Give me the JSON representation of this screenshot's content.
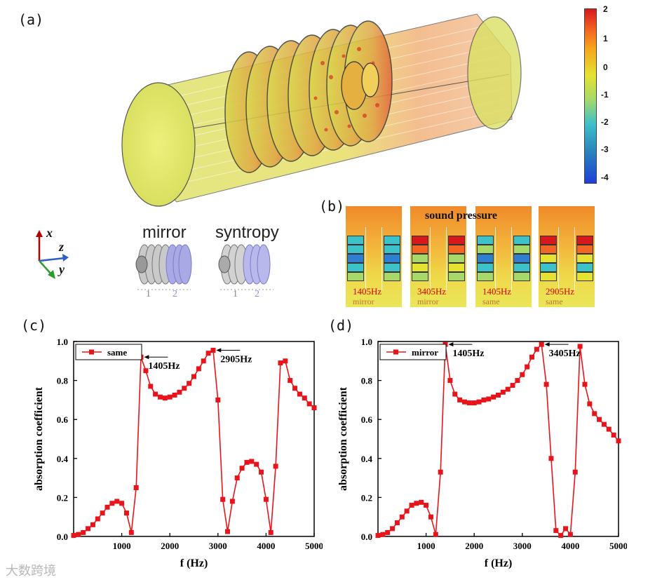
{
  "labels": {
    "a": "(a)",
    "b": "(b)",
    "c": "(c)",
    "d": "(d)"
  },
  "colorbar": {
    "ticks": [
      "2",
      "1",
      "0",
      "-1",
      "-2",
      "-3",
      "-4"
    ]
  },
  "axes_triad": {
    "x": "x",
    "z": "z",
    "y": "y"
  },
  "configs": {
    "mirror": {
      "title": "mirror",
      "n1": "1",
      "n2": "2"
    },
    "syntropy": {
      "title": "syntropy",
      "n1": "1",
      "n2": "2"
    }
  },
  "sound_panel": {
    "title": "sound pressure",
    "tiles": [
      {
        "freq": "1405Hz",
        "mode": "mirror"
      },
      {
        "freq": "3405Hz",
        "mode": "mirror"
      },
      {
        "freq": "1405Hz",
        "mode": "same"
      },
      {
        "freq": "2905Hz",
        "mode": "same"
      }
    ]
  },
  "chart_data": [
    {
      "type": "line",
      "panel": "(c)",
      "legend": "same",
      "xlabel": "f (Hz)",
      "ylabel": "absorption coefficient",
      "xlim": [
        0,
        5000
      ],
      "ylim": [
        0.0,
        1.0
      ],
      "xticks": [
        1000,
        2000,
        3000,
        4000,
        5000
      ],
      "yticks": [
        0.0,
        0.2,
        0.4,
        0.6,
        0.8,
        1.0
      ],
      "annotations": [
        {
          "text": "1405Hz",
          "x": 1405,
          "y": 0.92
        },
        {
          "text": "2905Hz",
          "x": 2905,
          "y": 0.955
        }
      ],
      "x": [
        0,
        100,
        200,
        300,
        400,
        500,
        600,
        700,
        800,
        900,
        1000,
        1100,
        1200,
        1300,
        1400,
        1500,
        1600,
        1700,
        1800,
        1900,
        2000,
        2100,
        2200,
        2300,
        2400,
        2500,
        2600,
        2700,
        2800,
        2900,
        3000,
        3100,
        3200,
        3300,
        3400,
        3500,
        3600,
        3700,
        3800,
        3900,
        4000,
        4100,
        4200,
        4300,
        4400,
        4500,
        4600,
        4700,
        4800,
        4900,
        5000
      ],
      "y": [
        0.005,
        0.01,
        0.02,
        0.04,
        0.06,
        0.09,
        0.12,
        0.15,
        0.17,
        0.18,
        0.17,
        0.12,
        0.02,
        0.25,
        0.92,
        0.85,
        0.77,
        0.73,
        0.715,
        0.71,
        0.715,
        0.725,
        0.74,
        0.76,
        0.785,
        0.82,
        0.86,
        0.9,
        0.94,
        0.955,
        0.7,
        0.19,
        0.025,
        0.18,
        0.3,
        0.35,
        0.38,
        0.385,
        0.37,
        0.33,
        0.19,
        0.02,
        0.36,
        0.89,
        0.9,
        0.8,
        0.76,
        0.73,
        0.71,
        0.68,
        0.66
      ]
    },
    {
      "type": "line",
      "panel": "(d)",
      "legend": "mirror",
      "xlabel": "f (Hz)",
      "ylabel": "absorption coefficient",
      "xlim": [
        0,
        5000
      ],
      "ylim": [
        0.0,
        1.0
      ],
      "xticks": [
        1000,
        2000,
        3000,
        4000,
        5000
      ],
      "yticks": [
        0.0,
        0.2,
        0.4,
        0.6,
        0.8,
        1.0
      ],
      "annotations": [
        {
          "text": "1405Hz",
          "x": 1405,
          "y": 0.985
        },
        {
          "text": "3405Hz",
          "x": 3405,
          "y": 0.985
        }
      ],
      "x": [
        0,
        100,
        200,
        300,
        400,
        500,
        600,
        700,
        800,
        900,
        1000,
        1100,
        1200,
        1300,
        1400,
        1500,
        1600,
        1700,
        1800,
        1900,
        2000,
        2100,
        2200,
        2300,
        2400,
        2500,
        2600,
        2700,
        2800,
        2900,
        3000,
        3100,
        3200,
        3300,
        3400,
        3500,
        3600,
        3700,
        3800,
        3900,
        4000,
        4100,
        4200,
        4300,
        4400,
        4500,
        4600,
        4700,
        4800,
        4900,
        5000
      ],
      "y": [
        0.005,
        0.01,
        0.02,
        0.04,
        0.07,
        0.1,
        0.13,
        0.16,
        0.17,
        0.175,
        0.16,
        0.1,
        0.01,
        0.33,
        0.985,
        0.8,
        0.73,
        0.7,
        0.69,
        0.685,
        0.685,
        0.69,
        0.7,
        0.705,
        0.715,
        0.725,
        0.74,
        0.755,
        0.775,
        0.8,
        0.83,
        0.87,
        0.92,
        0.96,
        0.985,
        0.78,
        0.4,
        0.03,
        0.005,
        0.04,
        0.01,
        0.33,
        0.975,
        0.78,
        0.68,
        0.63,
        0.6,
        0.575,
        0.55,
        0.52,
        0.49
      ]
    }
  ],
  "watermark": "大数跨境"
}
